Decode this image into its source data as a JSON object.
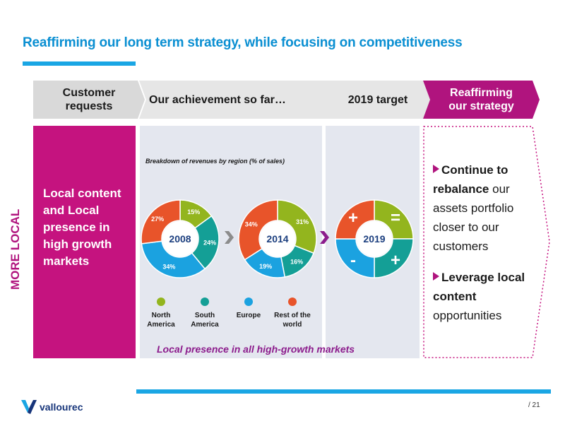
{
  "title": "Reaffirming our long term strategy, while focusing on competitiveness",
  "headers": {
    "customer_requests": "Customer requests",
    "achievement": "Our achievement so far…",
    "target": "2019 target",
    "reaffirming": "Reaffirming our strategy"
  },
  "side_label": "MORE LOCAL",
  "left_text": "Local content and Local presence in high growth markets",
  "strategy": {
    "item1_bold": "Continue to rebalance",
    "item1_rest": " our assets portfolio closer to our customers",
    "item2_bold": "Leverage local content",
    "item2_rest": " opportunities"
  },
  "caption": "Local presence in all high-growth markets",
  "page_number": "/ 21",
  "logo_text": "vallourec",
  "colors": {
    "north_america": "#93b51e",
    "south_america": "#149f96",
    "europe": "#1ba2e0",
    "rest_of_world": "#e8542a",
    "magenta": "#c5137f",
    "blue": "#1aa6e4"
  },
  "chart_data": {
    "type": "pie",
    "title": "Breakdown of revenues by region (% of sales)",
    "categories": [
      "North America",
      "South America",
      "Europe",
      "Rest of the world"
    ],
    "legend": [
      "North America",
      "South America",
      "Europe",
      "Rest of the world"
    ],
    "series": [
      {
        "name": "2008",
        "values": [
          15,
          24,
          34,
          27
        ],
        "labels": [
          "15%",
          "24%",
          "34%",
          "27%"
        ]
      },
      {
        "name": "2014",
        "values": [
          31,
          16,
          19,
          34
        ],
        "labels": [
          "31%",
          "16%",
          "19%",
          "34%"
        ]
      },
      {
        "name": "2019",
        "values": [
          25,
          25,
          25,
          25
        ],
        "labels": [
          "=",
          "+",
          "-",
          "+"
        ]
      }
    ]
  }
}
